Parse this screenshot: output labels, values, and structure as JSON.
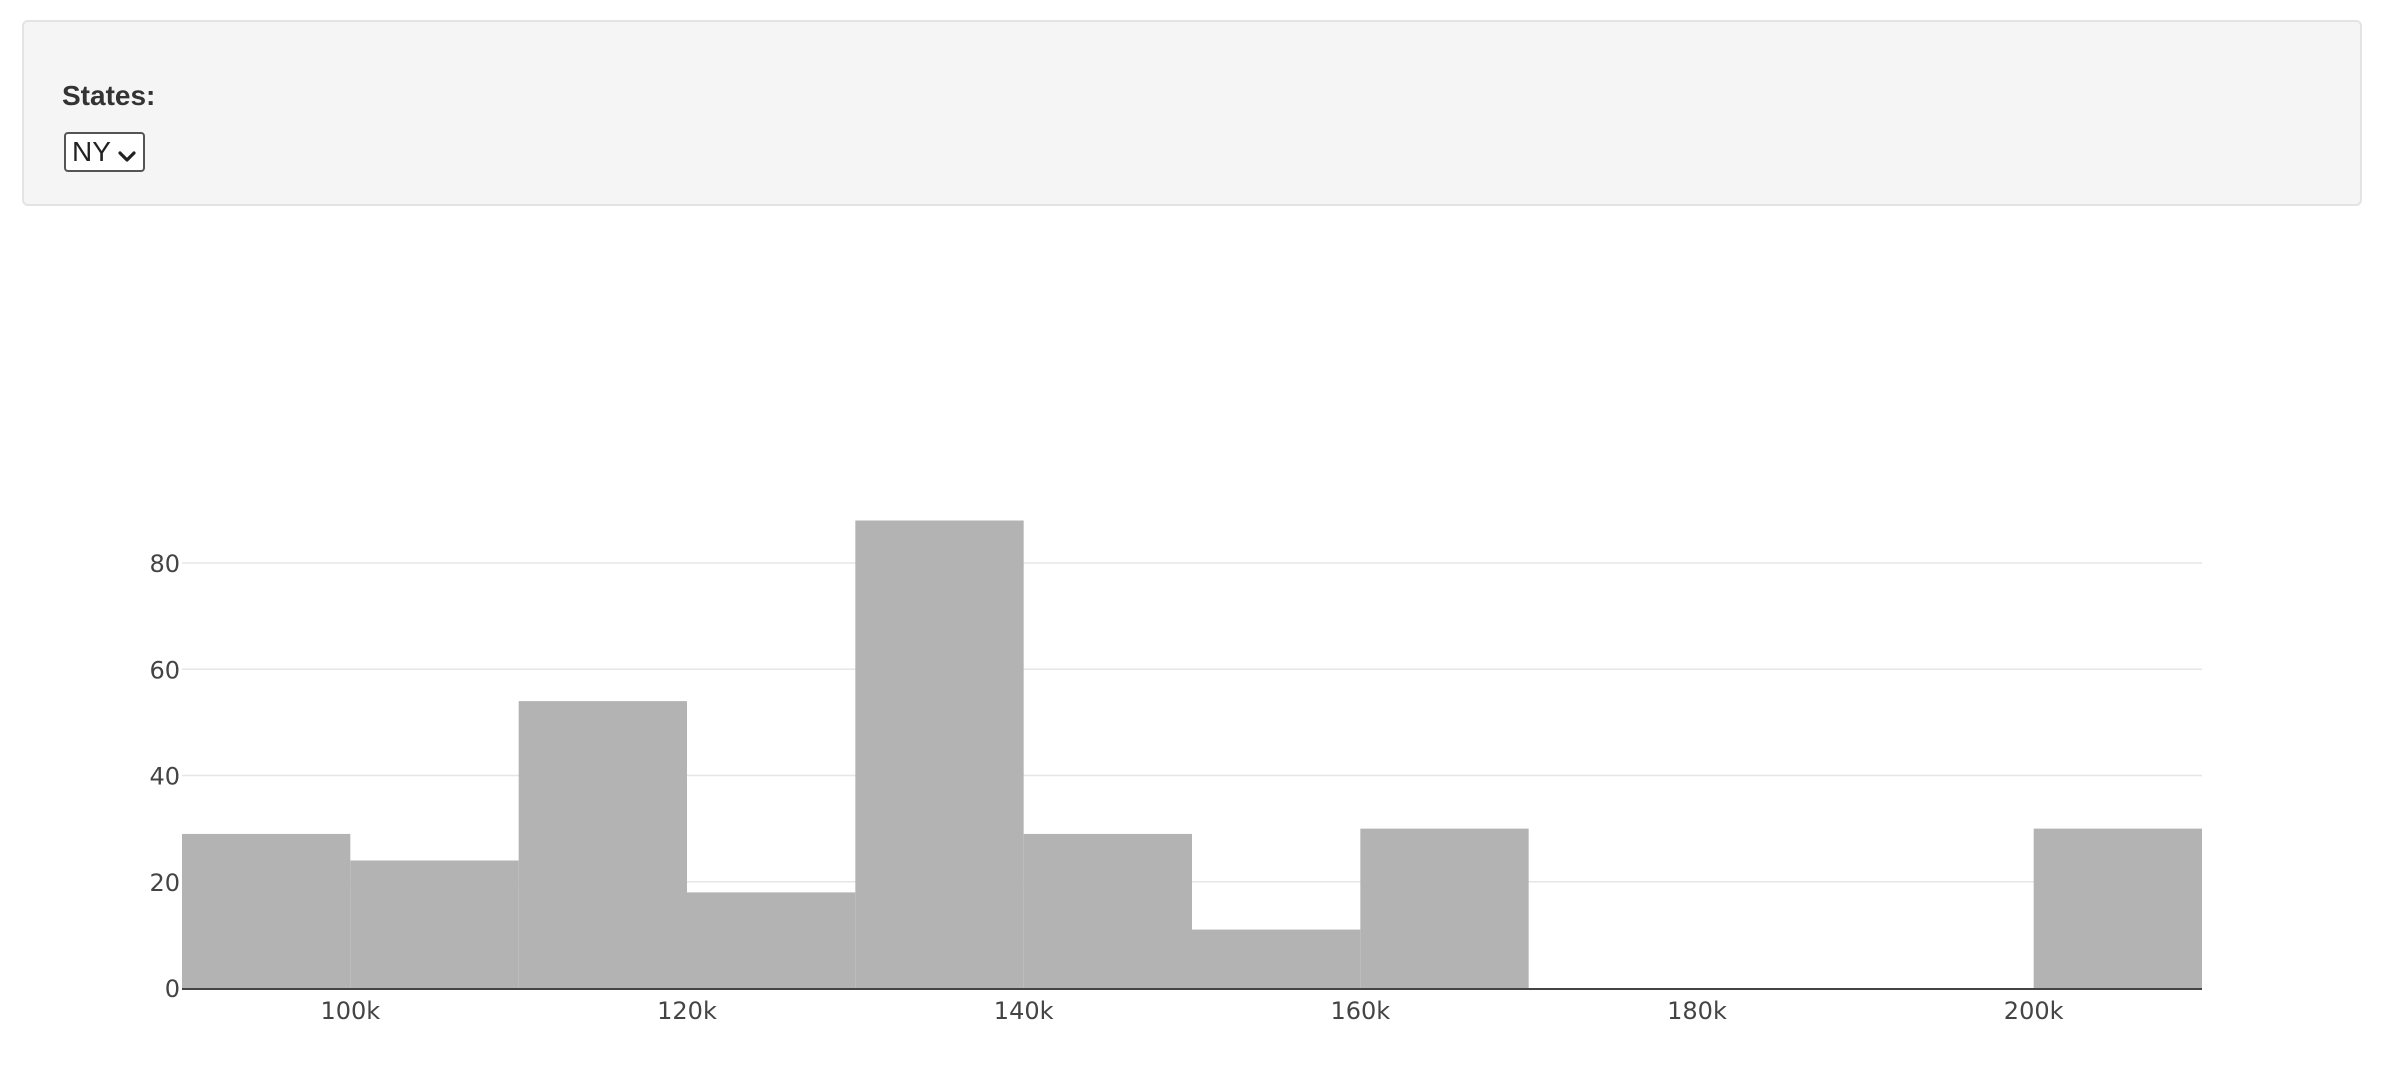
{
  "filter": {
    "label": "States:",
    "selected": "NY"
  },
  "colors": {
    "bar": "#b3b3b3",
    "grid": "#e6e6e6",
    "axis": "#444444"
  },
  "chart_data": {
    "type": "bar",
    "title": "",
    "xlabel": "",
    "ylabel": "",
    "bin_width": 10000,
    "bins": [
      {
        "x0": 90000,
        "x1": 100000,
        "count": 29
      },
      {
        "x0": 100000,
        "x1": 110000,
        "count": 24
      },
      {
        "x0": 110000,
        "x1": 120000,
        "count": 54
      },
      {
        "x0": 120000,
        "x1": 130000,
        "count": 18
      },
      {
        "x0": 130000,
        "x1": 140000,
        "count": 88
      },
      {
        "x0": 140000,
        "x1": 150000,
        "count": 29
      },
      {
        "x0": 150000,
        "x1": 160000,
        "count": 11
      },
      {
        "x0": 160000,
        "x1": 170000,
        "count": 30
      },
      {
        "x0": 170000,
        "x1": 180000,
        "count": 0
      },
      {
        "x0": 180000,
        "x1": 190000,
        "count": 0
      },
      {
        "x0": 190000,
        "x1": 200000,
        "count": 0
      },
      {
        "x0": 200000,
        "x1": 210000,
        "count": 30
      }
    ],
    "xlim": [
      90000,
      210000
    ],
    "ylim": [
      0,
      96
    ],
    "x_ticks": [
      {
        "value": 100000,
        "label": "100k"
      },
      {
        "value": 120000,
        "label": "120k"
      },
      {
        "value": 140000,
        "label": "140k"
      },
      {
        "value": 160000,
        "label": "160k"
      },
      {
        "value": 180000,
        "label": "180k"
      },
      {
        "value": 200000,
        "label": "200k"
      }
    ],
    "y_ticks": [
      {
        "value": 0,
        "label": "0"
      },
      {
        "value": 20,
        "label": "20"
      },
      {
        "value": 40,
        "label": "40"
      },
      {
        "value": 60,
        "label": "60"
      },
      {
        "value": 80,
        "label": "80"
      }
    ],
    "grid": true
  }
}
